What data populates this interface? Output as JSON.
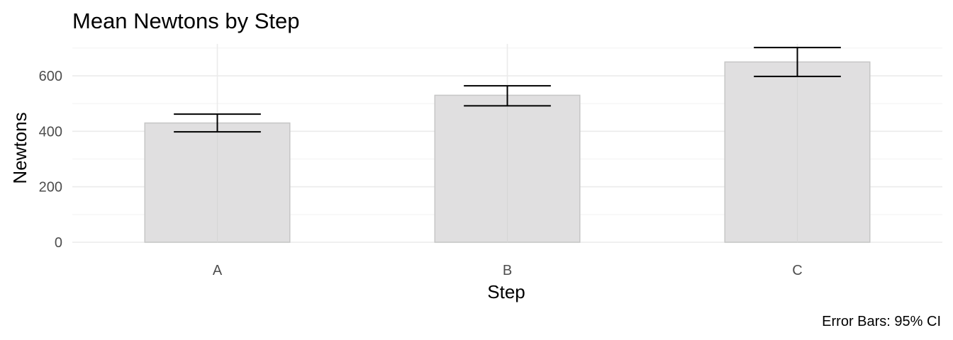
{
  "chart_data": {
    "type": "bar",
    "title": "Mean Newtons by Step",
    "xlabel": "Step",
    "ylabel": "Newtons",
    "caption": "Error Bars: 95% CI",
    "categories": [
      "A",
      "B",
      "C"
    ],
    "values": [
      430,
      530,
      650
    ],
    "error_bars": {
      "lower": [
        398,
        492,
        598
      ],
      "upper": [
        462,
        564,
        702
      ]
    },
    "ylim": [
      0,
      715
    ],
    "y_ticks": [
      0,
      200,
      400,
      600
    ],
    "grid": true,
    "legend": "none",
    "colors": {
      "bar_fill": "#e0dfe0",
      "bar_stroke": "#c6c6c6",
      "error_bar": "#000000"
    }
  }
}
